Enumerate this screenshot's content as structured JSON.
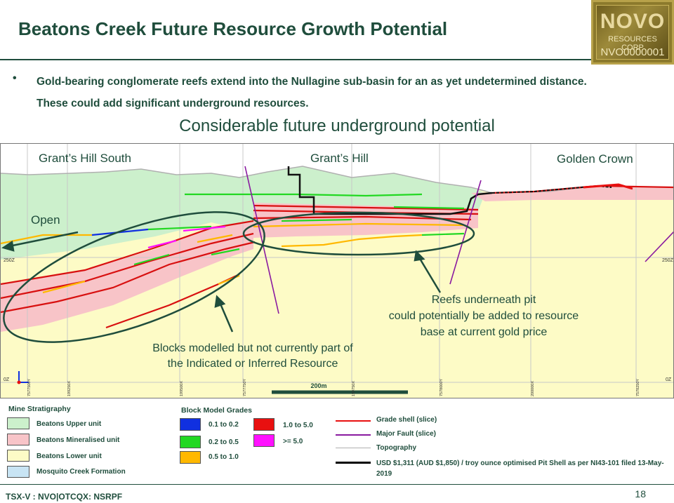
{
  "header": {
    "title": "Beatons Creek Future Resource Growth Potential"
  },
  "logo": {
    "word": "NOVO",
    "subtitle": "RESOURCES CORP",
    "ticker": "NVO0000001"
  },
  "bullet": {
    "text": "Gold-bearing conglomerate reefs extend into the Nullagine sub-basin for an as yet undetermined distance. These could add significant underground resources."
  },
  "section": {
    "title": "Considerable future underground potential",
    "labels": {
      "grants_hill_south": "Grant’s Hill South",
      "grants_hill": "Grant’s Hill",
      "golden_crown": "Golden Crown",
      "open": "Open",
      "reefs_line1": "Reefs underneath pit",
      "reefs_line2": "could potentially be added to resource",
      "reefs_line3": "base at current gold price",
      "blocks_line1": "Blocks modelled but not currently part of",
      "blocks_line2": "the Indicated or Inferred Resource",
      "scale": "200m",
      "elev_left": "250Z",
      "elev_right": "250Z",
      "zero_left": "0Z",
      "zero_right": "0Z"
    },
    "grid_labels": [
      "7577500Y",
      "199250X",
      "199500X",
      "7577750Y",
      "199750X",
      "7578000Y",
      "200000X",
      "7578250Y"
    ]
  },
  "legend": {
    "stratigraphy": {
      "title": "Mine Stratigraphy",
      "items": [
        {
          "label": "Beatons Upper unit",
          "color": "#ccf0cc"
        },
        {
          "label": "Beatons Mineralised unit",
          "color": "#f8c4c8"
        },
        {
          "label": "Beatons Lower unit",
          "color": "#fdfbc6"
        },
        {
          "label": "Mosquito Creek Formation",
          "color": "#c8e4f4"
        }
      ]
    },
    "grades": {
      "title": "Block Model Grades",
      "items": [
        {
          "label": "0.1 to 0.2",
          "color": "#1030e0"
        },
        {
          "label": "0.2 to 0.5",
          "color": "#22d822"
        },
        {
          "label": "0.5 to 1.0",
          "color": "#ffb800"
        },
        {
          "label": "1.0 to 5.0",
          "color": "#e81010"
        },
        {
          "label": ">= 5.0",
          "color": "#ff10ff"
        }
      ]
    },
    "lines": {
      "items": [
        {
          "label": "Grade shell (slice)",
          "color": "#e81010"
        },
        {
          "label": "Major Fault (slice)",
          "color": "#8a1aa0"
        },
        {
          "label": "Topography",
          "color": "#b0b0b0"
        },
        {
          "label": "USD $1,311 (AUD $1,850) / troy ounce optimised Pit Shell as per NI43-101 filed 13-May-2019",
          "color": "#000000"
        }
      ]
    }
  },
  "footer": {
    "left": "TSX-V : NVO|OTCQX: NSRPF",
    "page": "18"
  }
}
